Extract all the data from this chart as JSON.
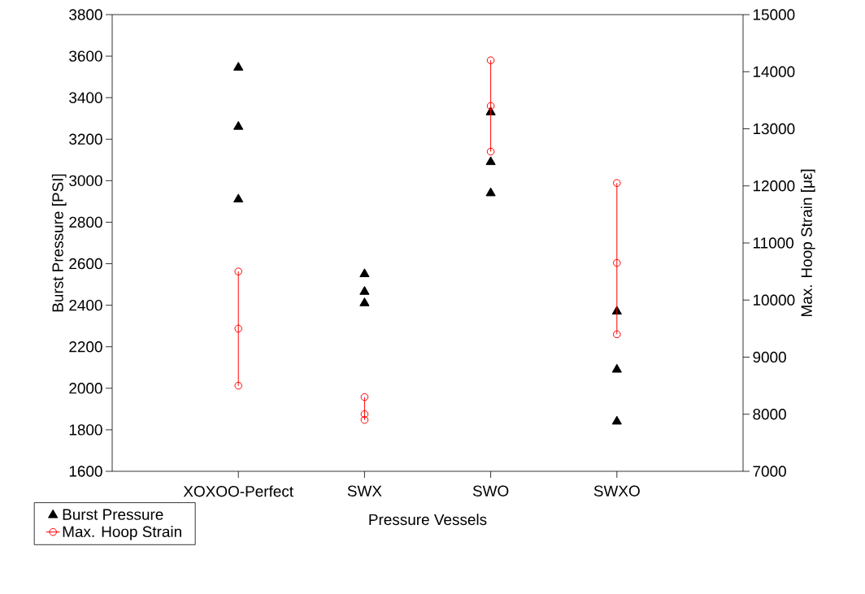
{
  "chart_data": {
    "type": "scatter",
    "categories": [
      "XOXOO-Perfect",
      "SWX",
      "SWO",
      "SWXO"
    ],
    "xlabel": "Pressure Vessels",
    "ylabel": "Burst Pressure [PSI]",
    "y2label": "Max. Hoop Strain [με]",
    "ylim": [
      1600,
      3800
    ],
    "yticks": [
      1600,
      1800,
      2000,
      2200,
      2400,
      2600,
      2800,
      3000,
      3200,
      3400,
      3600,
      3800
    ],
    "y2lim": [
      7000,
      15000
    ],
    "y2ticks": [
      7000,
      8000,
      9000,
      10000,
      11000,
      12000,
      13000,
      14000,
      15000
    ],
    "legend": "bottom left",
    "grid": false,
    "series": [
      {
        "name": "Burst Pressure",
        "marker": "triangle",
        "color": "#000000",
        "x": [
          "XOXOO-Perfect",
          "XOXOO-Perfect",
          "XOXOO-Perfect",
          "SWX",
          "SWX",
          "SWX",
          "SWO",
          "SWO",
          "SWO",
          "SWXO",
          "SWXO",
          "SWXO"
        ],
        "values": [
          3545,
          3260,
          2910,
          2550,
          2465,
          2410,
          3330,
          3090,
          2940,
          2370,
          2090,
          1840
        ]
      },
      {
        "name": "Max. Hoop Strain",
        "type": "line",
        "axis": "y2",
        "marker": "circle",
        "color": "#ff0000",
        "x": [
          "XOXOO-Perfect",
          "XOXOO-Perfect",
          "XOXOO-Perfect",
          "SWX",
          "SWX",
          "SWX",
          "SWO",
          "SWO",
          "SWO",
          "SWXO",
          "SWXO",
          "SWXO"
        ],
        "values": [
          10500,
          9500,
          8500,
          8300,
          8000,
          7900,
          14200,
          13400,
          12600,
          12050,
          10650,
          9400
        ]
      }
    ]
  }
}
